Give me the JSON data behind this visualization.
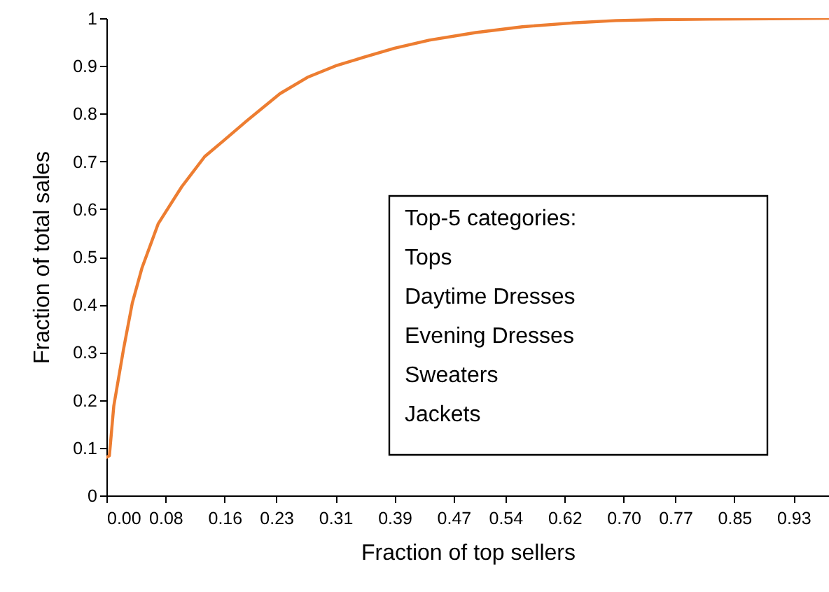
{
  "chart_data": {
    "type": "line",
    "xlabel": "Fraction of top sellers",
    "ylabel": "Fraction of total sales",
    "x": [
      0,
      0.004,
      0.01,
      0.023,
      0.035,
      0.048,
      0.07,
      0.102,
      0.133,
      0.159,
      0.19,
      0.235,
      0.272,
      0.31,
      0.348,
      0.39,
      0.437,
      0.5,
      0.563,
      0.63,
      0.69,
      0.75,
      0.817,
      0.9,
      0.978
    ],
    "series": [
      {
        "color": "#ed7d31",
        "values": [
          0.08,
          0.083,
          0.188,
          0.305,
          0.403,
          0.476,
          0.569,
          0.647,
          0.71,
          0.744,
          0.785,
          0.842,
          0.876,
          0.9,
          0.918,
          0.937,
          0.954,
          0.97,
          0.982,
          0.99,
          0.995,
          0.997,
          0.998,
          0.999,
          1.0
        ]
      }
    ],
    "xlim": [
      0,
      0.978
    ],
    "xticks": [
      {
        "value": 0,
        "label": "0.00"
      },
      0.08,
      0.16,
      0.23,
      0.31,
      0.39,
      0.47,
      0.54,
      0.62,
      {
        "value": 0.7,
        "label": "0.70"
      },
      0.77,
      0.85,
      0.93
    ],
    "ylim": [
      0,
      1
    ],
    "yticks": [
      0,
      0.1,
      0.2,
      0.3,
      0.4,
      0.5,
      0.6,
      0.7,
      0.8,
      0.9,
      1
    ],
    "annotations": [
      "Top-5 categories:\nTops\nDaytime Dresses\nEvening Dresses\nSweaters\nJackets"
    ]
  }
}
